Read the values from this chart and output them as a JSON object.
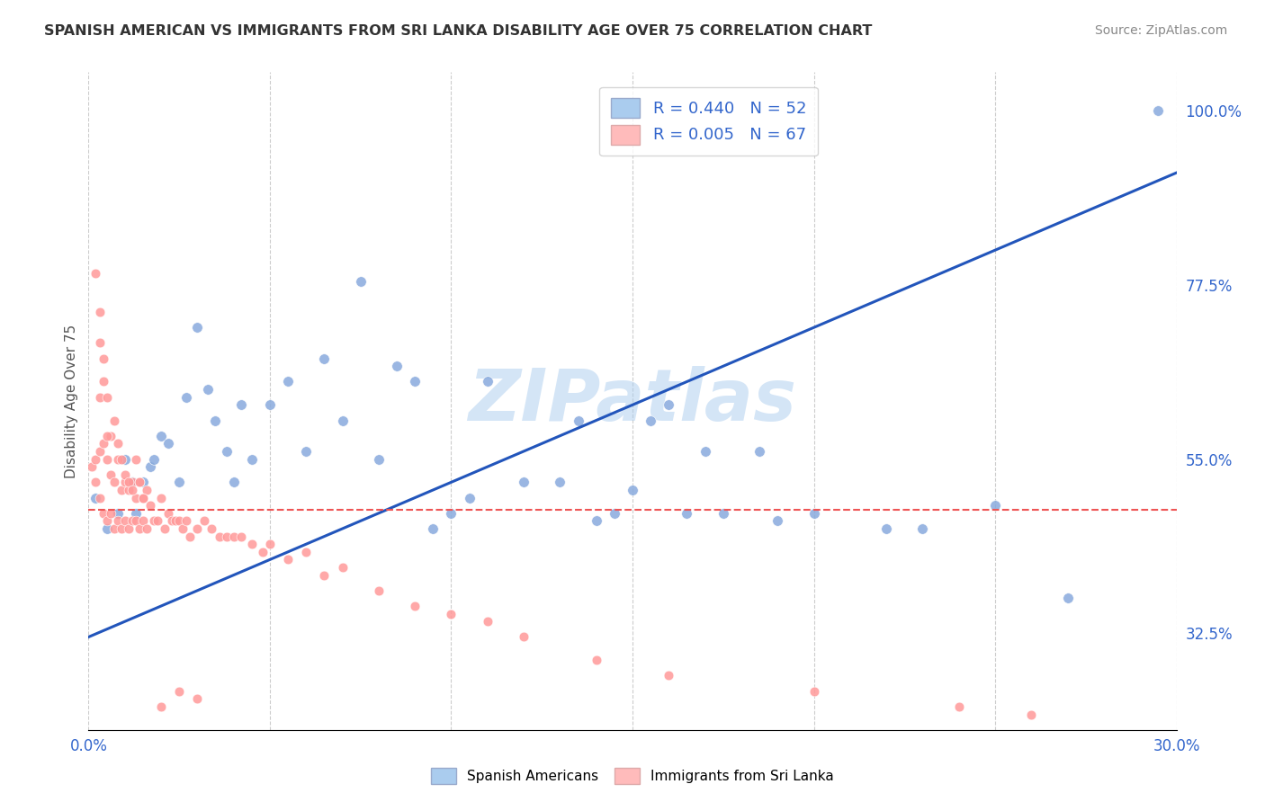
{
  "title": "SPANISH AMERICAN VS IMMIGRANTS FROM SRI LANKA DISABILITY AGE OVER 75 CORRELATION CHART",
  "source": "Source: ZipAtlas.com",
  "ylabel": "Disability Age Over 75",
  "xlim": [
    0.0,
    0.3
  ],
  "ylim": [
    0.2,
    1.05
  ],
  "xticks": [
    0.0,
    0.05,
    0.1,
    0.15,
    0.2,
    0.25,
    0.3
  ],
  "right_yticks": [
    0.325,
    0.55,
    0.775,
    1.0
  ],
  "right_yticklabels": [
    "32.5%",
    "55.0%",
    "77.5%",
    "100.0%"
  ],
  "blue_R": 0.44,
  "blue_N": 52,
  "pink_R": 0.005,
  "pink_N": 67,
  "blue_color": "#88AADD",
  "pink_color": "#FF9999",
  "blue_line_color": "#2255BB",
  "pink_line_color": "#EE5555",
  "watermark": "ZIPatlas",
  "watermark_color": "#AACCEE",
  "blue_x": [
    0.002,
    0.005,
    0.008,
    0.01,
    0.012,
    0.013,
    0.015,
    0.017,
    0.018,
    0.02,
    0.022,
    0.025,
    0.027,
    0.03,
    0.033,
    0.035,
    0.038,
    0.04,
    0.042,
    0.045,
    0.05,
    0.055,
    0.06,
    0.065,
    0.07,
    0.075,
    0.08,
    0.085,
    0.09,
    0.095,
    0.1,
    0.105,
    0.11,
    0.12,
    0.13,
    0.135,
    0.14,
    0.145,
    0.15,
    0.155,
    0.16,
    0.165,
    0.17,
    0.175,
    0.185,
    0.19,
    0.2,
    0.22,
    0.23,
    0.25,
    0.27,
    0.295
  ],
  "blue_y": [
    0.5,
    0.46,
    0.48,
    0.55,
    0.52,
    0.48,
    0.52,
    0.54,
    0.55,
    0.58,
    0.57,
    0.52,
    0.63,
    0.72,
    0.64,
    0.6,
    0.56,
    0.52,
    0.62,
    0.55,
    0.62,
    0.65,
    0.56,
    0.68,
    0.6,
    0.78,
    0.55,
    0.67,
    0.65,
    0.46,
    0.48,
    0.5,
    0.65,
    0.52,
    0.52,
    0.6,
    0.47,
    0.48,
    0.51,
    0.6,
    0.62,
    0.48,
    0.56,
    0.48,
    0.56,
    0.47,
    0.48,
    0.46,
    0.46,
    0.49,
    0.37,
    1.0
  ],
  "pink_x": [
    0.001,
    0.002,
    0.002,
    0.003,
    0.003,
    0.004,
    0.004,
    0.005,
    0.005,
    0.006,
    0.006,
    0.007,
    0.007,
    0.008,
    0.008,
    0.009,
    0.009,
    0.01,
    0.01,
    0.011,
    0.011,
    0.012,
    0.012,
    0.013,
    0.013,
    0.014,
    0.014,
    0.015,
    0.015,
    0.016,
    0.016,
    0.017,
    0.018,
    0.019,
    0.02,
    0.021,
    0.022,
    0.023,
    0.024,
    0.025,
    0.026,
    0.027,
    0.028,
    0.03,
    0.032,
    0.034,
    0.036,
    0.038,
    0.04,
    0.042,
    0.045,
    0.048,
    0.05,
    0.055,
    0.06,
    0.065,
    0.07,
    0.08,
    0.09,
    0.1,
    0.11,
    0.12,
    0.14,
    0.16,
    0.2,
    0.24,
    0.26
  ],
  "pink_y": [
    0.54,
    0.55,
    0.52,
    0.56,
    0.5,
    0.57,
    0.48,
    0.55,
    0.47,
    0.53,
    0.48,
    0.52,
    0.46,
    0.55,
    0.47,
    0.51,
    0.46,
    0.52,
    0.47,
    0.51,
    0.46,
    0.52,
    0.47,
    0.5,
    0.47,
    0.52,
    0.46,
    0.5,
    0.47,
    0.51,
    0.46,
    0.49,
    0.47,
    0.47,
    0.5,
    0.46,
    0.48,
    0.47,
    0.47,
    0.47,
    0.46,
    0.47,
    0.45,
    0.46,
    0.47,
    0.46,
    0.45,
    0.45,
    0.45,
    0.45,
    0.44,
    0.43,
    0.44,
    0.42,
    0.43,
    0.4,
    0.41,
    0.38,
    0.36,
    0.35,
    0.34,
    0.32,
    0.29,
    0.27,
    0.25,
    0.23,
    0.22
  ],
  "pink_extra_x": [
    0.002,
    0.003,
    0.003,
    0.004,
    0.005,
    0.006,
    0.007,
    0.008,
    0.009,
    0.01,
    0.011,
    0.012,
    0.013,
    0.014,
    0.015,
    0.003,
    0.004,
    0.005,
    0.02,
    0.025,
    0.03
  ],
  "pink_extra_y": [
    0.79,
    0.7,
    0.63,
    0.68,
    0.63,
    0.58,
    0.6,
    0.57,
    0.55,
    0.53,
    0.52,
    0.51,
    0.55,
    0.52,
    0.5,
    0.74,
    0.65,
    0.58,
    0.23,
    0.25,
    0.24
  ]
}
